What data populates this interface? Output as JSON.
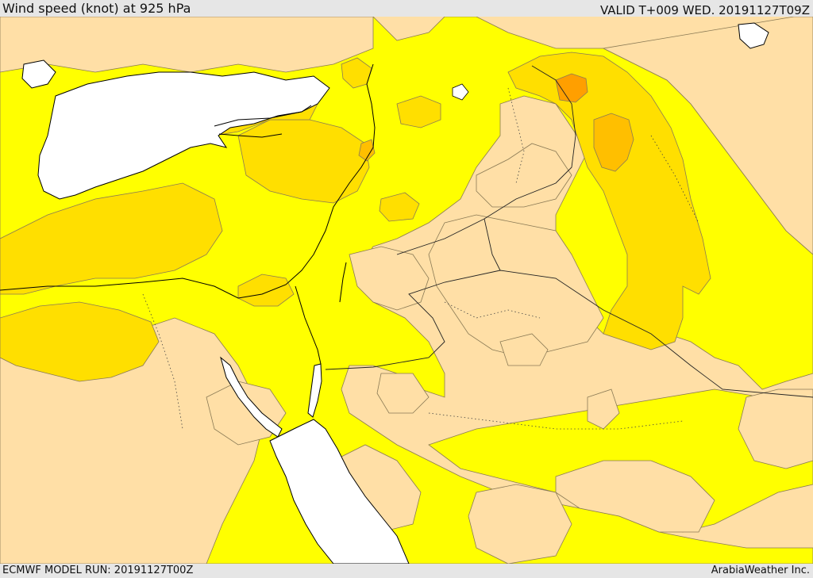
{
  "header": {
    "title": "Wind speed (knot) at 925 hPa",
    "valid": "VALID T+009 WED. 20191127T09Z"
  },
  "footer": {
    "model_run": "ECMWF MODEL RUN: 20191127T00Z",
    "credit": "ArabiaWeather Inc."
  },
  "palette": {
    "band_low": "#ffdfa6",
    "band_mid": "#ffff00",
    "band_high": "#ffdf00",
    "band_higher": "#ffbf00",
    "band_highest": "#ff9f00",
    "water": "#ffffff",
    "contour": "#8a7a55",
    "coastline": "#000000",
    "border": "#333333"
  }
}
